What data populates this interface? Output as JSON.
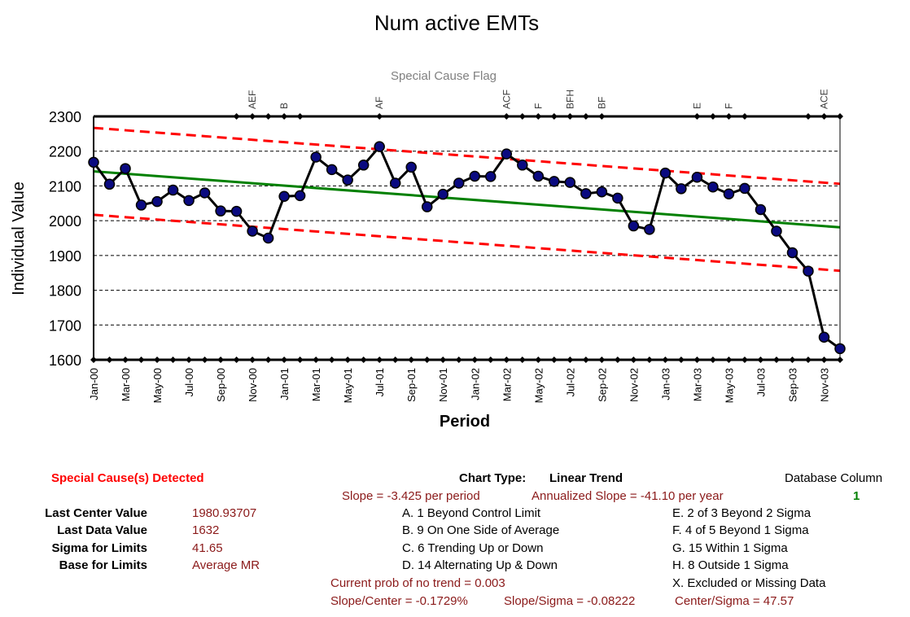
{
  "chart_data": {
    "type": "line",
    "title": "Num active EMTs",
    "xlabel": "Period",
    "ylabel": "Individual Value",
    "flag_title": "Special Cause Flag",
    "ylim": [
      1600,
      2300
    ],
    "y_ticks": [
      "2300",
      "2200",
      "2100",
      "2000",
      "1900",
      "1800",
      "1700",
      "1600"
    ],
    "x_tick_labels": [
      "Jan-00",
      "Mar-00",
      "May-00",
      "Jul-00",
      "Sep-00",
      "Nov-00",
      "Jan-01",
      "Mar-01",
      "May-01",
      "Jul-01",
      "Sep-01",
      "Nov-01",
      "Jan-02",
      "Mar-02",
      "May-02",
      "Jul-02",
      "Sep-02",
      "Nov-02",
      "Jan-03",
      "Mar-03",
      "May-03",
      "Jul-03",
      "Sep-03",
      "Nov-03"
    ],
    "grid": true,
    "series": [
      {
        "values": [
          2168,
          2105,
          2150,
          2045,
          2055,
          2088,
          2058,
          2080,
          2028,
          2027,
          1970,
          1950,
          2070,
          2072,
          2183,
          2147,
          2117,
          2160,
          2213,
          2108,
          2154,
          2040,
          2076,
          2108,
          2128,
          2127,
          2192,
          2160,
          2128,
          2113,
          2110,
          2078,
          2083,
          2065,
          1985,
          1975,
          2137,
          2092,
          2125,
          2097,
          2077,
          2093,
          2032,
          1970,
          1908,
          1855,
          1665,
          1632
        ],
        "color": "#000000"
      },
      {
        "role": "center-line",
        "start": 2142,
        "end": 1981,
        "color": "#008000"
      },
      {
        "role": "upper-limit",
        "start": 2267,
        "end": 2106,
        "color": "#ff0000"
      },
      {
        "role": "lower-limit",
        "start": 2017,
        "end": 1856,
        "color": "#ff0000"
      }
    ],
    "flags": [
      {
        "index": 10,
        "label": "AEF"
      },
      {
        "index": 12,
        "label": "B"
      },
      {
        "index": 18,
        "label": "AF"
      },
      {
        "index": 26,
        "label": "ACF"
      },
      {
        "index": 28,
        "label": "F"
      },
      {
        "index": 30,
        "label": "BFH"
      },
      {
        "index": 32,
        "label": "BF"
      },
      {
        "index": 38,
        "label": "E"
      },
      {
        "index": 40,
        "label": "F"
      },
      {
        "index": 46,
        "label": "ACE"
      }
    ],
    "top_markers": [
      9,
      10,
      11,
      12,
      13,
      18,
      26,
      27,
      28,
      29,
      30,
      31,
      32,
      38,
      39,
      40,
      41,
      45,
      46,
      47
    ]
  },
  "summary": {
    "special_cause": "Special Cause(s) Detected",
    "stats": [
      {
        "label": "Last Center Value",
        "value": "1980.93707"
      },
      {
        "label": "Last Data Value",
        "value": "1632"
      },
      {
        "label": "Sigma for Limits",
        "value": "41.65"
      },
      {
        "label": "Base for Limits",
        "value": "Average MR"
      }
    ],
    "chart_type_label": "Chart Type:",
    "chart_type_value": "Linear Trend",
    "slope": "Slope = -3.425 per period",
    "annualized": "Annualized Slope = -41.10 per year",
    "rules_left": [
      "A. 1 Beyond Control Limit",
      "B. 9 On One Side of Average",
      "C. 6 Trending Up or Down",
      "D. 14 Alternating  Up & Down"
    ],
    "rules_right": [
      "E.  2 of 3 Beyond 2 Sigma",
      "F.  4 of 5 Beyond 1 Sigma",
      "G.  15 Within 1 Sigma",
      "H.  8 Outside 1 Sigma",
      "X.  Excluded or Missing Data"
    ],
    "prob_no_trend": "Current prob of no trend = 0.003",
    "slope_center": "Slope/Center = -0.1729%",
    "slope_sigma": "Slope/Sigma = -0.08222",
    "center_sigma": "Center/Sigma = 47.57",
    "db_column_label": "Database Column",
    "db_column_value": "1"
  }
}
